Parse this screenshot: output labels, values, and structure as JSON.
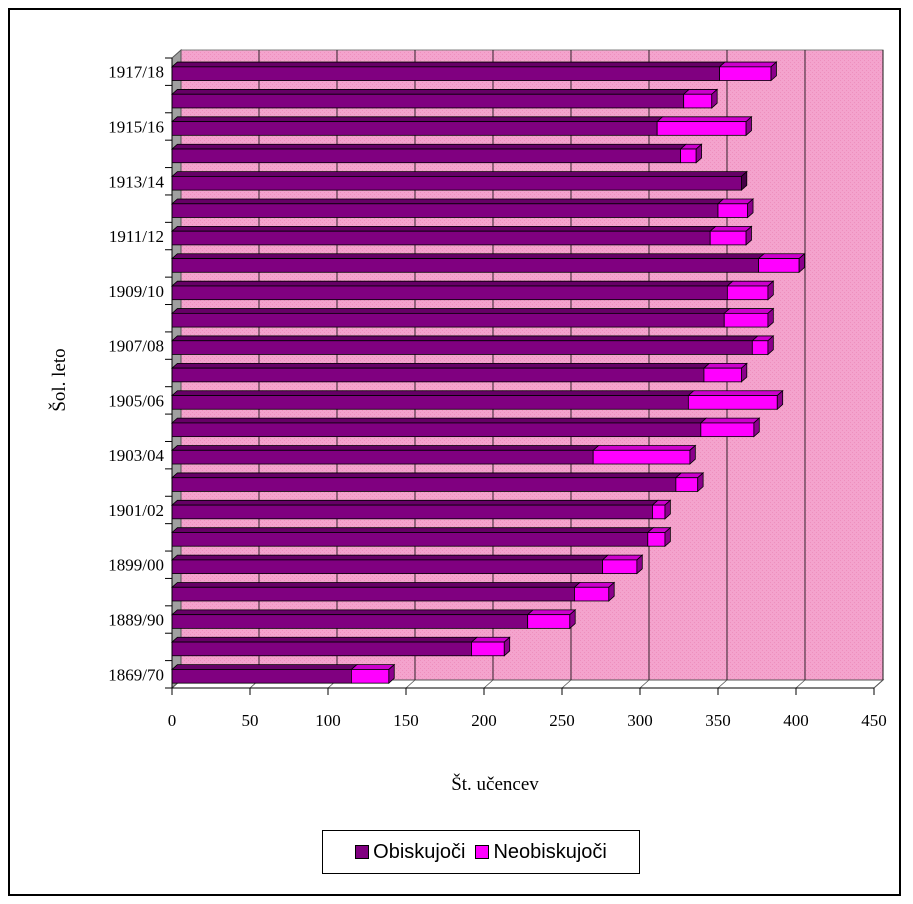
{
  "chart_data": {
    "type": "bar",
    "orientation": "horizontal",
    "stacked": true,
    "style_3d": true,
    "xlabel": "Št. učencev",
    "ylabel": "Šol. leto",
    "xlim": [
      0,
      450
    ],
    "x_ticks": [
      0,
      50,
      100,
      150,
      200,
      250,
      300,
      350,
      400,
      450
    ],
    "gridlines": true,
    "legend_position": "bottom",
    "categories": [
      "1869/70",
      "",
      "1889/90",
      "",
      "1899/00",
      "",
      "1901/02",
      "",
      "1903/04",
      "",
      "1905/06",
      "",
      "1907/08",
      "",
      "1909/10",
      "",
      "1911/12",
      "",
      "1913/14",
      "",
      "1915/16",
      "",
      "1917/18"
    ],
    "series": [
      {
        "name": "Obiskujoči",
        "color": "#800080",
        "values": [
          115,
          192,
          228,
          258,
          276,
          305,
          308,
          323,
          270,
          339,
          331,
          341,
          372,
          354,
          356,
          376,
          345,
          350,
          365,
          326,
          311,
          328,
          351
        ]
      },
      {
        "name": "Neobiskujoči",
        "color": "#ff00ff",
        "values": [
          24,
          21,
          27,
          22,
          22,
          11,
          8,
          14,
          62,
          34,
          57,
          24,
          10,
          28,
          26,
          26,
          23,
          19,
          0,
          10,
          57,
          18,
          33
        ]
      }
    ],
    "colors": {
      "plot_area": "#f39ec9",
      "floor": "#a0a0a0",
      "gridline": "#000000"
    }
  }
}
